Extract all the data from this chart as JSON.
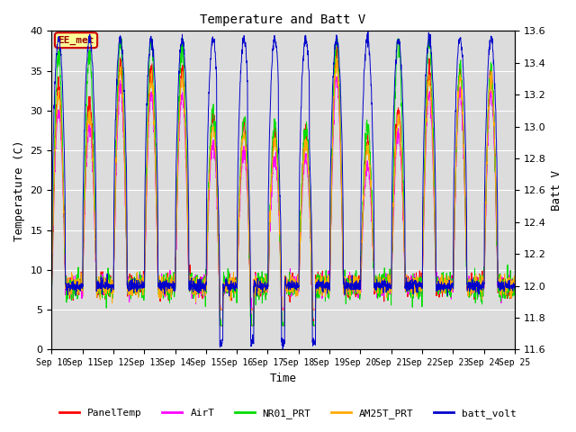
{
  "title": "Temperature and Batt V",
  "xlabel": "Time",
  "ylabel_left": "Temperature (C)",
  "ylabel_right": "Batt V",
  "annotation": "EE_met",
  "ylim_left": [
    0,
    40
  ],
  "ylim_right": [
    11.6,
    13.6
  ],
  "yticks_left": [
    0,
    5,
    10,
    15,
    20,
    25,
    30,
    35,
    40
  ],
  "yticks_right": [
    11.6,
    11.8,
    12.0,
    12.2,
    12.4,
    12.6,
    12.8,
    13.0,
    13.2,
    13.4,
    13.6
  ],
  "xtick_days": [
    10,
    11,
    12,
    13,
    14,
    15,
    16,
    17,
    18,
    19,
    20,
    21,
    22,
    23,
    24,
    25
  ],
  "xtick_labels": [
    "Sep 10",
    "Sep 11",
    "Sep 12",
    "Sep 13",
    "Sep 14",
    "Sep 15",
    "Sep 16",
    "Sep 17",
    "Sep 18",
    "Sep 19",
    "Sep 20",
    "Sep 21",
    "Sep 22",
    "Sep 23",
    "Sep 24",
    "Sep 25"
  ],
  "colors": {
    "PanelTemp": "#ff0000",
    "AirT": "#ff00ff",
    "NR01_PRT": "#00dd00",
    "AM25T_PRT": "#ffaa00",
    "batt_volt": "#0000cc"
  },
  "legend_labels": [
    "PanelTemp",
    "AirT",
    "NR01_PRT",
    "AM25T_PRT",
    "batt_volt"
  ],
  "bg_color": "#dcdcdc",
  "fig_bg": "#ffffff",
  "annotation_box_color": "#ffff99",
  "annotation_border_color": "#cc0000",
  "font_family": "monospace"
}
